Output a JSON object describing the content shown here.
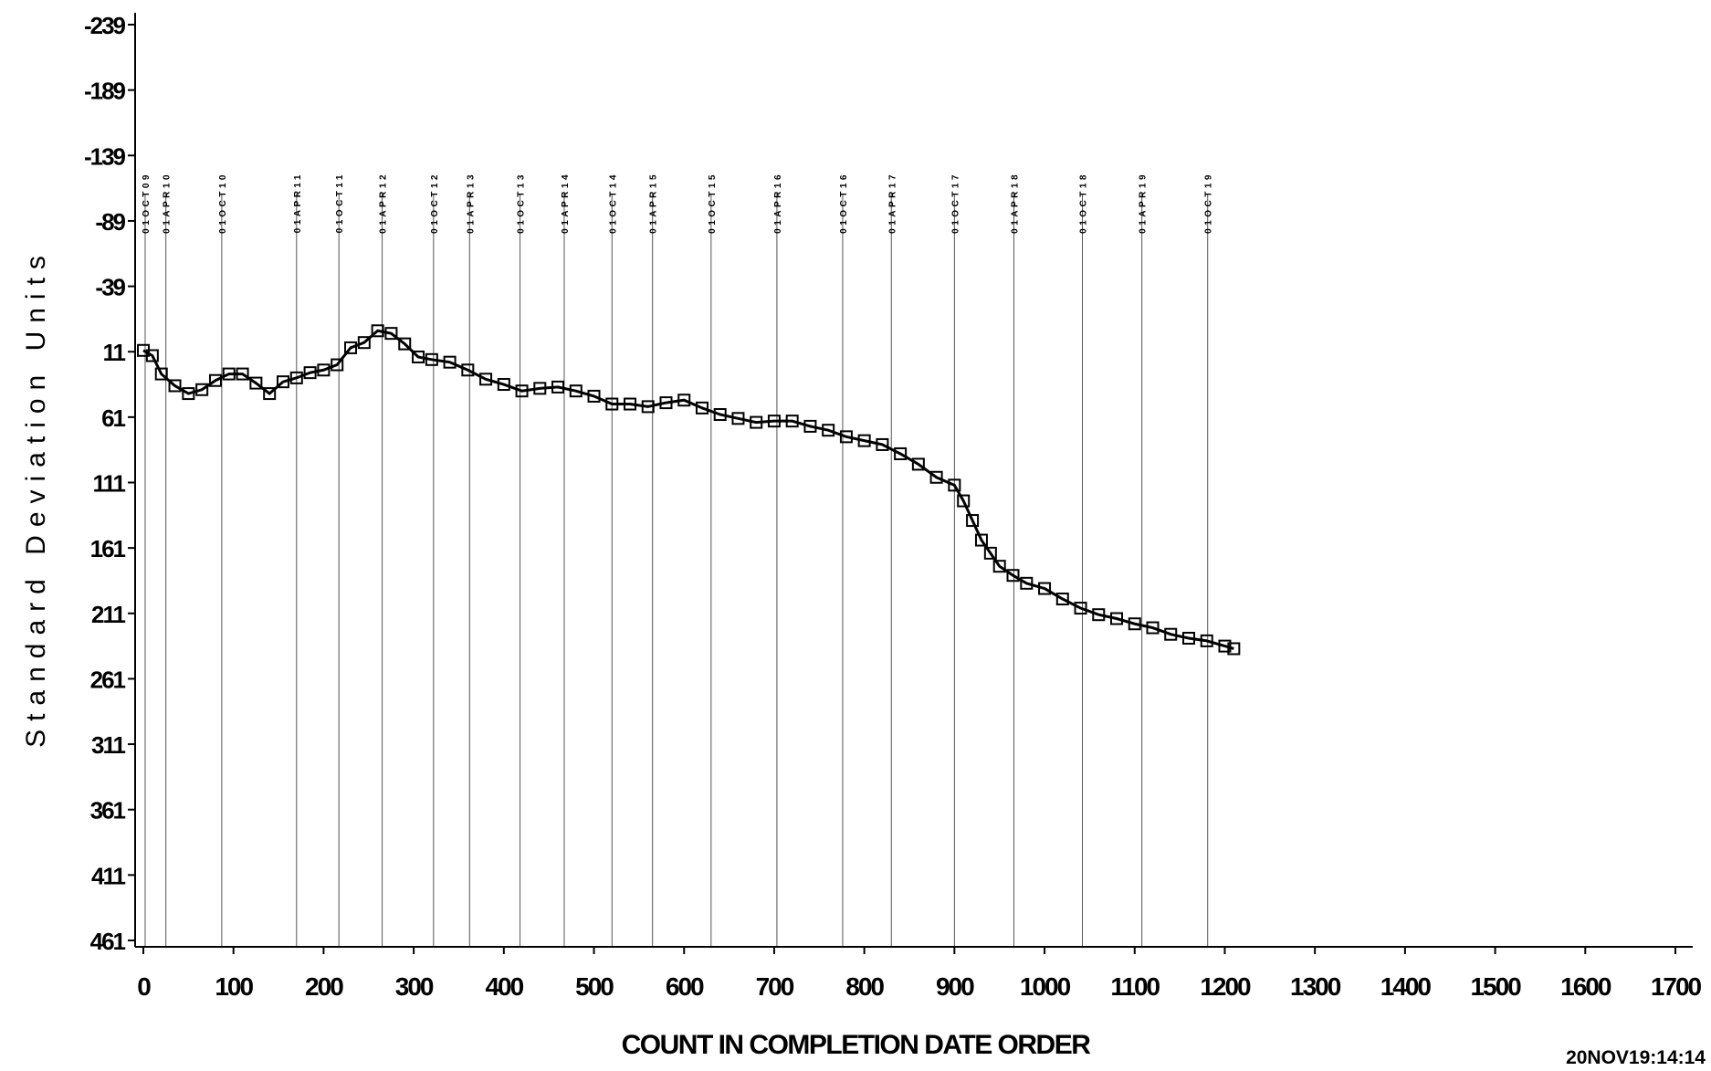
{
  "chart_data": {
    "type": "line",
    "title": "",
    "xlabel": "COUNT IN COMPLETION DATE ORDER",
    "ylabel": "Standard Deviation Units",
    "timestamp": "20NOV19:14:14",
    "y_reversed": true,
    "xlim": [
      0,
      1700
    ],
    "ylim": [
      -239,
      461
    ],
    "x_ticks": [
      0,
      100,
      200,
      300,
      400,
      500,
      600,
      700,
      800,
      900,
      1000,
      1100,
      1200,
      1300,
      1400,
      1500,
      1600,
      1700
    ],
    "y_ticks": [
      -239,
      -189,
      -139,
      -89,
      -39,
      11,
      61,
      111,
      161,
      211,
      261,
      311,
      361,
      411,
      461
    ],
    "reference_lines": [
      {
        "x": 2,
        "label": "01OCT09"
      },
      {
        "x": 25,
        "label": "01APR10"
      },
      {
        "x": 87,
        "label": "01OCT10"
      },
      {
        "x": 170,
        "label": "01APR11"
      },
      {
        "x": 217,
        "label": "01OCT11"
      },
      {
        "x": 265,
        "label": "01APR12"
      },
      {
        "x": 322,
        "label": "01OCT12"
      },
      {
        "x": 362,
        "label": "01APR13"
      },
      {
        "x": 418,
        "label": "01OCT13"
      },
      {
        "x": 467,
        "label": "01APR14"
      },
      {
        "x": 520,
        "label": "01OCT14"
      },
      {
        "x": 565,
        "label": "01APR15"
      },
      {
        "x": 630,
        "label": "01OCT15"
      },
      {
        "x": 703,
        "label": "01APR16"
      },
      {
        "x": 776,
        "label": "01OCT16"
      },
      {
        "x": 830,
        "label": "01APR17"
      },
      {
        "x": 900,
        "label": "01OCT17"
      },
      {
        "x": 966,
        "label": "01APR18"
      },
      {
        "x": 1042,
        "label": "01OCT18"
      },
      {
        "x": 1108,
        "label": "01APR19"
      },
      {
        "x": 1181,
        "label": "01OCT19"
      }
    ],
    "series": [
      {
        "marker": "square",
        "color": "#000000",
        "x": [
          0,
          10,
          20,
          35,
          50,
          65,
          80,
          95,
          110,
          125,
          140,
          155,
          170,
          185,
          200,
          215,
          230,
          245,
          260,
          275,
          290,
          305,
          320,
          340,
          360,
          380,
          400,
          420,
          440,
          460,
          480,
          500,
          520,
          540,
          560,
          580,
          600,
          620,
          640,
          660,
          680,
          700,
          720,
          740,
          760,
          780,
          800,
          820,
          840,
          860,
          880,
          900,
          910,
          920,
          930,
          940,
          950,
          965,
          980,
          1000,
          1020,
          1040,
          1060,
          1080,
          1100,
          1120,
          1140,
          1160,
          1180,
          1200,
          1210
        ],
        "y": [
          10,
          14,
          28,
          37,
          43,
          40,
          33,
          28,
          28,
          35,
          43,
          34,
          31,
          27,
          25,
          21,
          8,
          4,
          -5,
          -3,
          5,
          15,
          17,
          19,
          25,
          32,
          36,
          41,
          39,
          38,
          41,
          45,
          51,
          51,
          53,
          50,
          48,
          54,
          59,
          62,
          65,
          64,
          64,
          68,
          71,
          76,
          79,
          82,
          89,
          97,
          107,
          113,
          125,
          140,
          155,
          165,
          175,
          182,
          188,
          192,
          200,
          207,
          212,
          215,
          219,
          222,
          227,
          230,
          232,
          236,
          238
        ]
      }
    ]
  }
}
